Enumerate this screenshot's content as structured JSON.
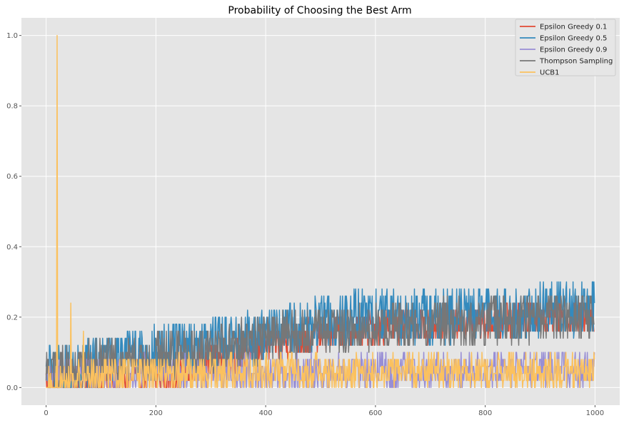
{
  "chart_data": {
    "type": "line",
    "title": "Probability of Choosing the Best Arm",
    "xlabel": "",
    "ylabel": "",
    "xlim": [
      -45,
      1045
    ],
    "ylim": [
      -0.05,
      1.05
    ],
    "x_ticks": [
      0,
      200,
      400,
      600,
      800,
      1000
    ],
    "x_tick_labels": [
      "0",
      "200",
      "400",
      "600",
      "800",
      "1000"
    ],
    "y_ticks": [
      0.0,
      0.2,
      0.4,
      0.6,
      0.8,
      1.0
    ],
    "y_tick_labels": [
      "0.0",
      "0.2",
      "0.4",
      "0.6",
      "0.8",
      "1.0"
    ],
    "grid": true,
    "legend_position": "top-right",
    "background": "#e5e5e5",
    "grid_color": "#ffffff",
    "n_points": 1000,
    "series": [
      {
        "name": "Epsilon Greedy 0.1",
        "color": "#e24a33",
        "trend": [
          [
            0,
            0.01
          ],
          [
            200,
            0.03
          ],
          [
            300,
            0.07
          ],
          [
            400,
            0.12
          ],
          [
            500,
            0.15
          ],
          [
            600,
            0.17
          ],
          [
            700,
            0.18
          ],
          [
            800,
            0.19
          ],
          [
            900,
            0.2
          ],
          [
            1000,
            0.2
          ]
        ],
        "amplitude": 0.05,
        "y_min": 0.0,
        "y_max": 0.28
      },
      {
        "name": "Epsilon Greedy 0.5",
        "color": "#348abd",
        "trend": [
          [
            0,
            0.04
          ],
          [
            100,
            0.07
          ],
          [
            200,
            0.1
          ],
          [
            300,
            0.12
          ],
          [
            400,
            0.15
          ],
          [
            500,
            0.18
          ],
          [
            600,
            0.2
          ],
          [
            700,
            0.2
          ],
          [
            800,
            0.21
          ],
          [
            900,
            0.22
          ],
          [
            1000,
            0.23
          ]
        ],
        "amplitude": 0.08,
        "y_min": 0.0,
        "y_max": 0.36
      },
      {
        "name": "Epsilon Greedy 0.9",
        "color": "#988ed5",
        "trend": [
          [
            0,
            0.04
          ],
          [
            500,
            0.045
          ],
          [
            1000,
            0.05
          ]
        ],
        "amplitude": 0.05,
        "y_min": 0.0,
        "y_max": 0.12
      },
      {
        "name": "Thompson Sampling",
        "color": "#777777",
        "trend": [
          [
            0,
            0.04
          ],
          [
            100,
            0.07
          ],
          [
            200,
            0.09
          ],
          [
            300,
            0.11
          ],
          [
            400,
            0.14
          ],
          [
            500,
            0.16
          ],
          [
            600,
            0.17
          ],
          [
            700,
            0.18
          ],
          [
            800,
            0.19
          ],
          [
            900,
            0.2
          ],
          [
            1000,
            0.2
          ]
        ],
        "amplitude": 0.07,
        "y_min": 0.0,
        "y_max": 0.32
      },
      {
        "name": "UCB1",
        "color": "#fbc15e",
        "trend": [
          [
            0,
            0.0
          ],
          [
            60,
            0.03
          ],
          [
            200,
            0.04
          ],
          [
            500,
            0.045
          ],
          [
            1000,
            0.05
          ]
        ],
        "amplitude": 0.05,
        "y_min": 0.0,
        "y_max": 0.16,
        "spikes": [
          [
            20,
            1.0
          ],
          [
            45,
            0.24
          ],
          [
            68,
            0.16
          ]
        ]
      }
    ]
  }
}
